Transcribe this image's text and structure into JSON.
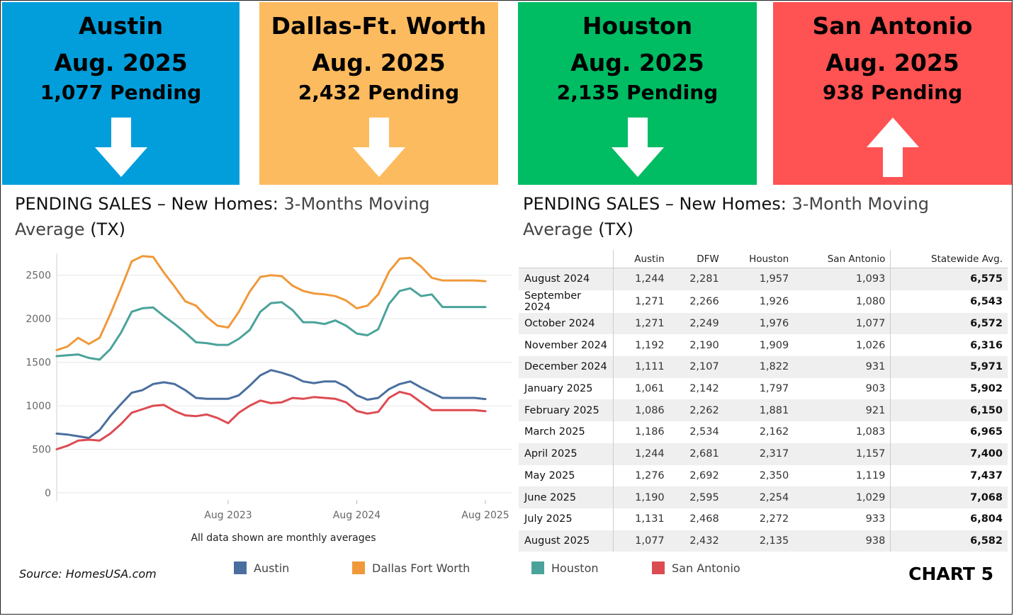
{
  "cards": [
    {
      "city": "Austin",
      "period": "Aug. 2025",
      "pending": "1,077 Pending",
      "direction": "down",
      "color": "#029edb"
    },
    {
      "city": "Dallas-Ft. Worth",
      "period": "Aug. 2025",
      "pending": "2,432 Pending",
      "direction": "down",
      "color": "#fdbb5f"
    },
    {
      "city": "Houston",
      "period": "Aug. 2025",
      "pending": "2,135 Pending",
      "direction": "down",
      "color": "#00bc63"
    },
    {
      "city": "San Antonio",
      "period": "Aug. 2025",
      "pending": "938 Pending",
      "direction": "up",
      "color": "#ff5252"
    }
  ],
  "left_title": {
    "main": "PENDING SALES – New Homes: ",
    "muted": "3-Months  Moving",
    "line2_muted": "Average",
    "line2_main": " (TX)"
  },
  "right_title": {
    "main": "PENDING SALES – New Homes:  ",
    "muted": "3-Month Moving",
    "line2_muted": "Average",
    "line2_main": " (TX)"
  },
  "note": "All data shown are monthly averages",
  "source": "Source: HomesUSA.com",
  "chart_label": "CHART 5",
  "chart_data": {
    "type": "line",
    "ylim": [
      0,
      2750
    ],
    "y_ticks": [
      0,
      500,
      1000,
      1500,
      2000,
      2500
    ],
    "x_tick_labels": [
      "Aug 2023",
      "Aug 2024",
      "Aug 2025"
    ],
    "x_tick_index": [
      16,
      28,
      40
    ],
    "x_count": 41,
    "grid": "horizontal",
    "legend_position": "bottom",
    "series": [
      {
        "name": "Austin",
        "color": "#4a6f9e",
        "values": [
          680,
          670,
          650,
          630,
          720,
          880,
          1020,
          1150,
          1180,
          1250,
          1270,
          1250,
          1180,
          1090,
          1080,
          1080,
          1080,
          1120,
          1230,
          1350,
          1410,
          1380,
          1340,
          1280,
          1260,
          1280,
          1280,
          1220,
          1120,
          1070,
          1090,
          1190,
          1250,
          1280,
          1210,
          1150,
          1090,
          1090,
          1090,
          1090,
          1077
        ]
      },
      {
        "name": "Dallas Fort Worth",
        "color": "#f0993a",
        "values": [
          1640,
          1680,
          1780,
          1710,
          1780,
          2050,
          2350,
          2660,
          2720,
          2710,
          2530,
          2370,
          2200,
          2150,
          2020,
          1920,
          1900,
          2080,
          2310,
          2480,
          2500,
          2490,
          2380,
          2320,
          2290,
          2280,
          2260,
          2210,
          2120,
          2150,
          2280,
          2540,
          2690,
          2700,
          2600,
          2470,
          2440,
          2440,
          2440,
          2440,
          2432
        ]
      },
      {
        "name": "Houston",
        "color": "#4aa39a",
        "values": [
          1570,
          1580,
          1590,
          1550,
          1530,
          1650,
          1840,
          2080,
          2120,
          2130,
          2030,
          1940,
          1840,
          1730,
          1720,
          1700,
          1700,
          1770,
          1870,
          2080,
          2180,
          2190,
          2100,
          1960,
          1960,
          1940,
          1980,
          1920,
          1830,
          1810,
          1880,
          2170,
          2320,
          2350,
          2260,
          2280,
          2135,
          2135,
          2135,
          2135,
          2135
        ]
      },
      {
        "name": "San Antonio",
        "color": "#dd4b52",
        "values": [
          500,
          540,
          600,
          610,
          600,
          680,
          790,
          920,
          960,
          1000,
          1010,
          940,
          890,
          880,
          900,
          860,
          800,
          920,
          1000,
          1060,
          1030,
          1040,
          1090,
          1080,
          1100,
          1090,
          1080,
          1040,
          940,
          910,
          930,
          1090,
          1160,
          1130,
          1040,
          950,
          950,
          950,
          950,
          950,
          938
        ]
      }
    ]
  },
  "table": {
    "headers": [
      "",
      "Austin",
      "DFW",
      "Houston",
      "San Antonio",
      "Statewide Avg."
    ],
    "rows": [
      [
        "August 2024",
        "1,244",
        "2,281",
        "1,957",
        "1,093",
        "6,575"
      ],
      [
        "September 2024",
        "1,271",
        "2,266",
        "1,926",
        "1,080",
        "6,543"
      ],
      [
        "October 2024",
        "1,271",
        "2,249",
        "1,976",
        "1,077",
        "6,572"
      ],
      [
        "November 2024",
        "1,192",
        "2,190",
        "1,909",
        "1,026",
        "6,316"
      ],
      [
        "December 2024",
        "1,111",
        "2,107",
        "1,822",
        "931",
        "5,971"
      ],
      [
        "January 2025",
        "1,061",
        "2,142",
        "1,797",
        "903",
        "5,902"
      ],
      [
        "February 2025",
        "1,086",
        "2,262",
        "1,881",
        "921",
        "6,150"
      ],
      [
        "March 2025",
        "1,186",
        "2,534",
        "2,162",
        "1,083",
        "6,965"
      ],
      [
        "April 2025",
        "1,244",
        "2,681",
        "2,317",
        "1,157",
        "7,400"
      ],
      [
        "May 2025",
        "1,276",
        "2,692",
        "2,350",
        "1,119",
        "7,437"
      ],
      [
        "June 2025",
        "1,190",
        "2,595",
        "2,254",
        "1,029",
        "7,068"
      ],
      [
        "July 2025",
        "1,131",
        "2,468",
        "2,272",
        "933",
        "6,804"
      ],
      [
        "August 2025",
        "1,077",
        "2,432",
        "2,135",
        "938",
        "6,582"
      ]
    ]
  }
}
